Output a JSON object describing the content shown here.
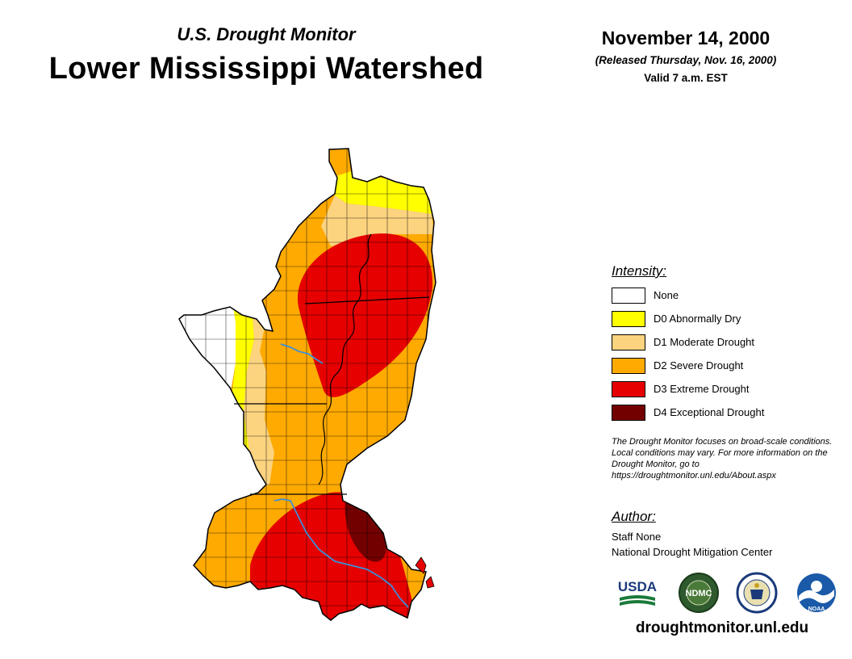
{
  "header": {
    "subtitle": "U.S. Drought Monitor",
    "title": "Lower Mississippi Watershed",
    "date": "November 14, 2000",
    "released": "(Released Thursday, Nov. 16, 2000)",
    "valid": "Valid 7 a.m. EST"
  },
  "legend": {
    "title": "Intensity:",
    "items": [
      {
        "label": "None",
        "color": "#ffffff"
      },
      {
        "label": "D0 Abnormally Dry",
        "color": "#ffff00"
      },
      {
        "label": "D1 Moderate Drought",
        "color": "#fcd37f"
      },
      {
        "label": "D2 Severe Drought",
        "color": "#ffaa00"
      },
      {
        "label": "D3 Extreme Drought",
        "color": "#e60000"
      },
      {
        "label": "D4 Exceptional Drought",
        "color": "#730000"
      }
    ]
  },
  "disclaimer": "The Drought Monitor focuses on broad-scale conditions. Local conditions may vary. For more information on the Drought Monitor, go to https://droughtmonitor.unl.edu/About.aspx",
  "author": {
    "title": "Author:",
    "name": "Staff None",
    "org": "National Drought Mitigation Center"
  },
  "logos": {
    "usda": "USDA",
    "ndmc": "NDMC",
    "noaa": "NOAA"
  },
  "website": "droughtmonitor.unl.edu",
  "map": {
    "river_color": "#3b8fd9"
  }
}
